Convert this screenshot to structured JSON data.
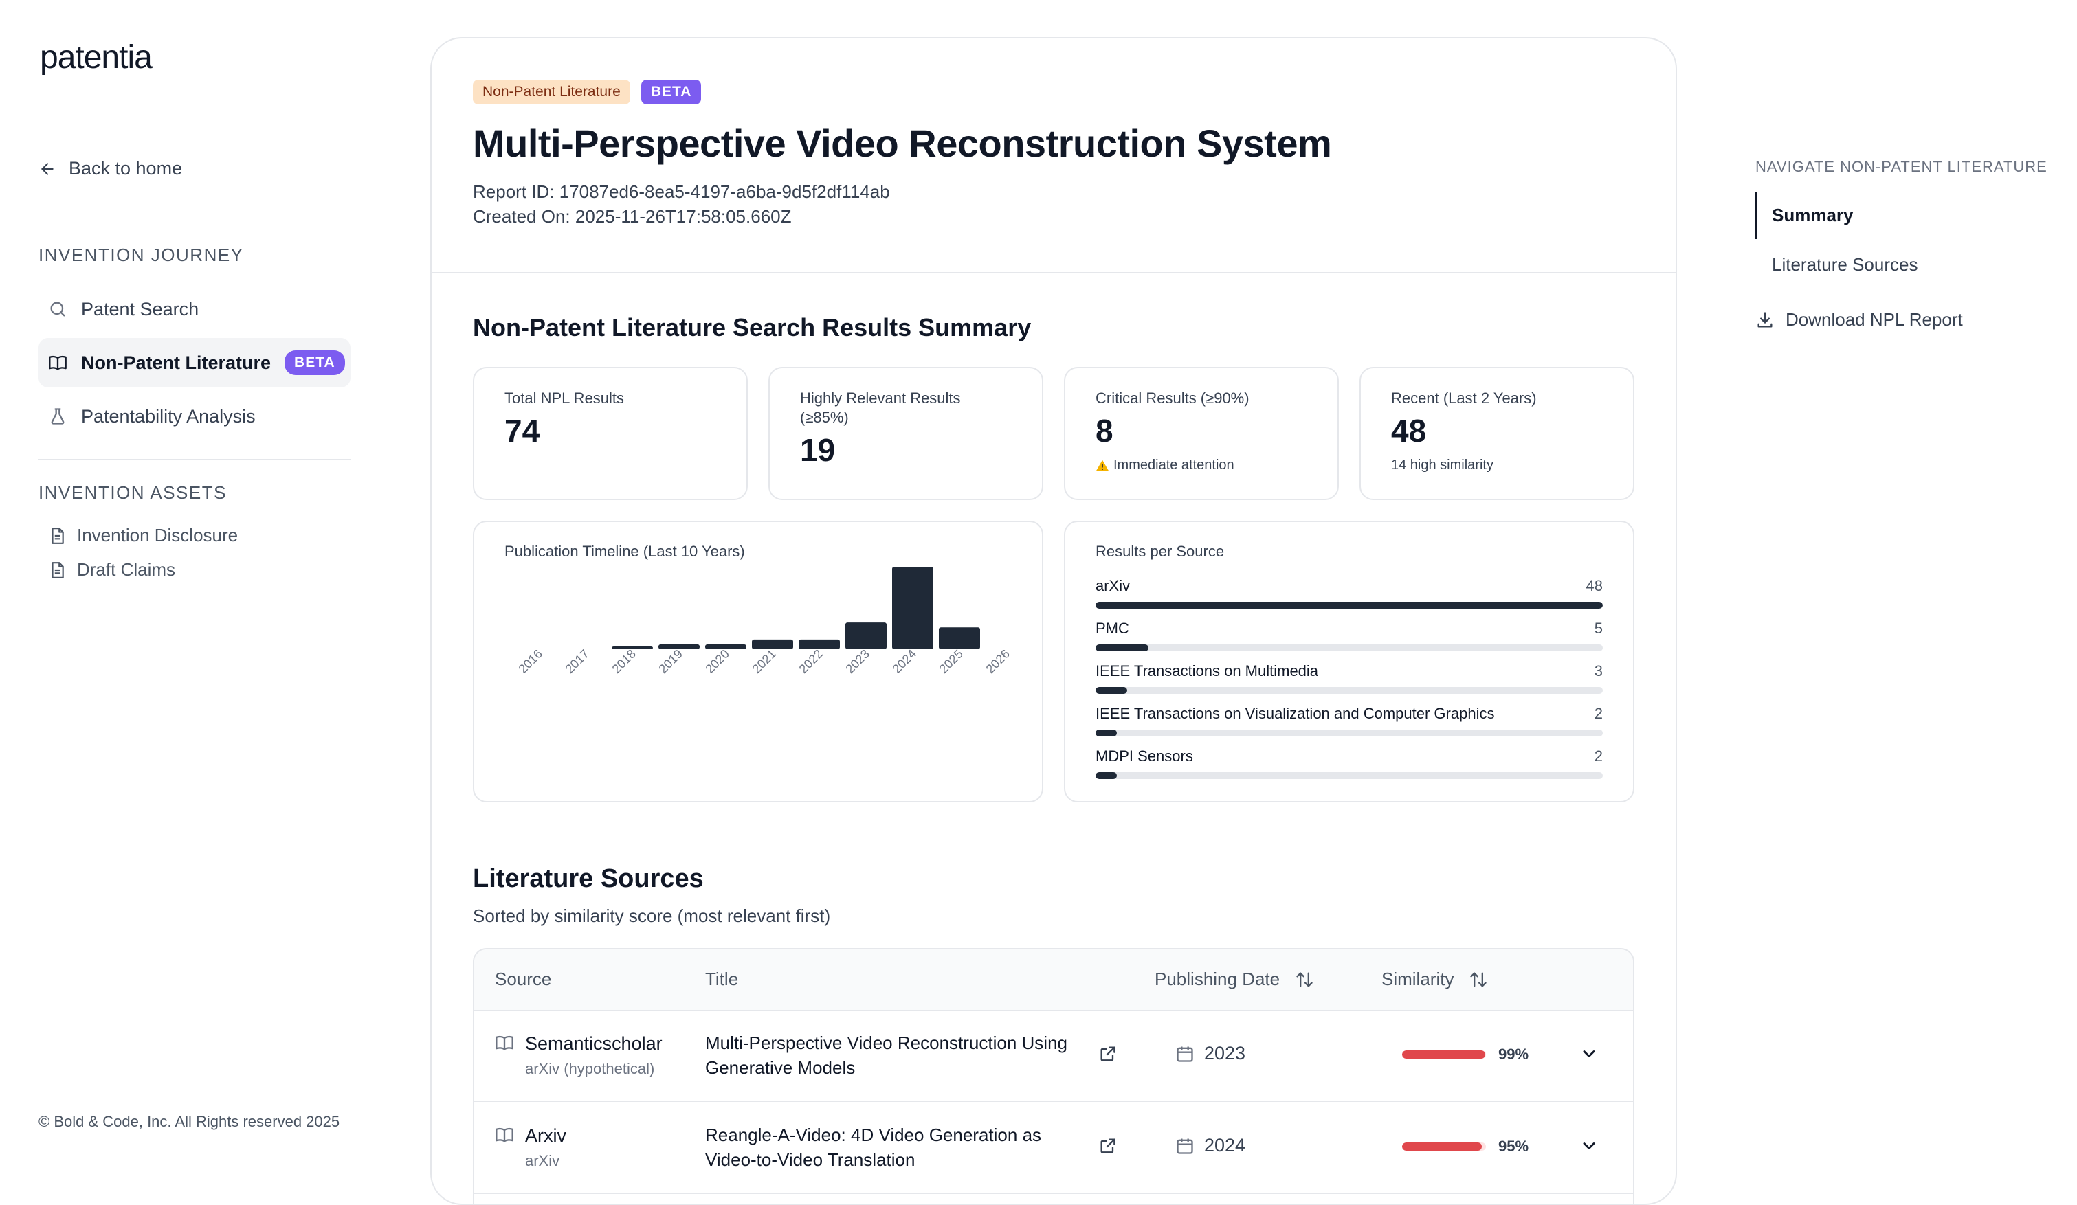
{
  "brand": {
    "logo_text": "patentia"
  },
  "sidebar": {
    "back_label": "Back to home",
    "journey_label": "INVENTION JOURNEY",
    "journey_items": [
      {
        "label": "Patent Search",
        "icon": "search-icon"
      },
      {
        "label": "Non-Patent Literature",
        "icon": "book-icon",
        "badge": "BETA",
        "active": true
      },
      {
        "label": "Patentability Analysis",
        "icon": "flask-icon"
      }
    ],
    "assets_label": "INVENTION ASSETS",
    "asset_items": [
      {
        "label": "Invention Disclosure",
        "icon": "document-icon"
      },
      {
        "label": "Draft Claims",
        "icon": "document-icon"
      }
    ],
    "footer": "© Bold & Code, Inc. All Rights reserved 2025"
  },
  "report": {
    "badge_category": "Non-Patent Literature",
    "badge_beta": "BETA",
    "title": "Multi-Perspective Video Reconstruction System",
    "report_id": "Report ID: 17087ed6-8ea5-4197-a6ba-9d5f2df114ab",
    "created_on": "Created On: 2025-11-26T17:58:05.660Z"
  },
  "summary": {
    "title": "Non-Patent Literature Search Results Summary",
    "stats": [
      {
        "label": "Total NPL Results",
        "value": "74",
        "note": ""
      },
      {
        "label": "Highly Relevant Results (≥85%)",
        "value": "19",
        "note": ""
      },
      {
        "label": "Critical Results (≥90%)",
        "value": "8",
        "note": "Immediate attention"
      },
      {
        "label": "Recent (Last 2 Years)",
        "value": "48",
        "note": "14 high similarity"
      }
    ],
    "timeline_title": "Publication Timeline (Last 10 Years)",
    "sources_title": "Results per Source"
  },
  "chart_data": [
    {
      "type": "bar",
      "title": "Publication Timeline (Last 10 Years)",
      "categories": [
        "2016",
        "2017",
        "2018",
        "2019",
        "2020",
        "2021",
        "2022",
        "2023",
        "2024",
        "2025",
        "2026"
      ],
      "values": [
        0,
        0,
        1,
        2,
        2,
        4,
        4,
        11,
        34,
        9,
        0
      ],
      "color": "#1f2937"
    },
    {
      "type": "bar",
      "orientation": "horizontal",
      "title": "Results per Source",
      "categories": [
        "arXiv",
        "PMC",
        "IEEE Transactions on Multimedia",
        "IEEE Transactions on Visualization and Computer Graphics",
        "MDPI Sensors"
      ],
      "values": [
        48,
        5,
        3,
        2,
        2
      ],
      "max": 48,
      "color": "#1f2937"
    }
  ],
  "literature": {
    "title": "Literature Sources",
    "subtitle": "Sorted by similarity score (most relevant first)",
    "columns": {
      "source": "Source",
      "title": "Title",
      "date": "Publishing Date",
      "similarity": "Similarity"
    },
    "rows": [
      {
        "source": "Semanticscholar",
        "source_sub": "arXiv (hypothetical)",
        "title": "Multi-Perspective Video Reconstruction Using Generative Models",
        "date": "2023",
        "similarity": "99%",
        "similarity_value": 0.99
      },
      {
        "source": "Arxiv",
        "source_sub": "arXiv",
        "title": "Reangle-A-Video: 4D Video Generation as Video-to-Video Translation",
        "date": "2024",
        "similarity": "95%",
        "similarity_value": 0.95
      }
    ]
  },
  "right_nav": {
    "label": "NAVIGATE NON-PATENT LITERATURE",
    "items": [
      {
        "label": "Summary",
        "active": true
      },
      {
        "label": "Literature Sources",
        "active": false
      }
    ],
    "download_label": "Download NPL Report"
  },
  "colors": {
    "accent_purple": "#7c5cf0",
    "bar_dark": "#1f2937",
    "similarity_red": "#e0474c",
    "badge_orange_bg": "#fde2c4"
  }
}
